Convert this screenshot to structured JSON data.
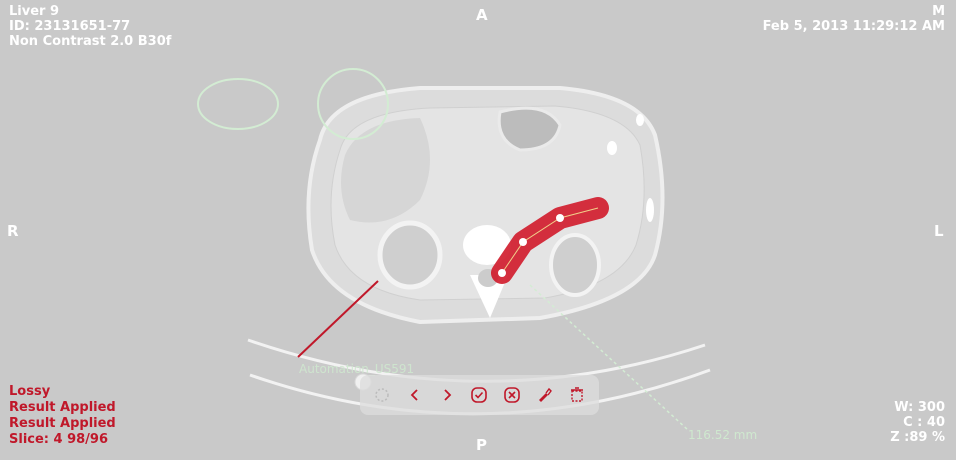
{
  "patient": {
    "name": "Liver 9",
    "id": "ID: 23131651-77",
    "series": "Non Contrast 2.0 B30f"
  },
  "study": {
    "sex": "M",
    "datetime": "Feb 5, 2013 11:29:12 AM"
  },
  "orientation": {
    "top": "A",
    "bottom": "P",
    "left": "R",
    "right": "L"
  },
  "status": {
    "lossy": "Lossy",
    "result_applied": "Result Applied",
    "result_applied_2": "Result Applied",
    "slice": "Slice: 4  98/96"
  },
  "window": {
    "width": "W: 300",
    "center": "C : 40",
    "zoom": "Z :89 %"
  },
  "annotations": {
    "automation_label": "Automation_US591",
    "distance_label": "116.52 mm"
  },
  "toolbar": {
    "icons": [
      "lasso-icon",
      "chevron-left-icon",
      "chevron-right-icon",
      "check-circle-icon",
      "cancel-circle-icon",
      "brush-icon",
      "delete-icon"
    ]
  },
  "colors": {
    "background": "#c9c9c9",
    "segmentation": "#d01a2a",
    "annotation_green": "#d3ecd3",
    "status_red": "#c0182a"
  }
}
